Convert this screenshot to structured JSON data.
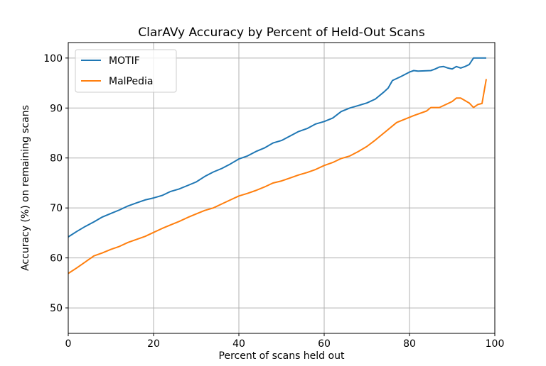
{
  "chart_data": {
    "type": "line",
    "title": "ClarAVy Accuracy by Percent of Held-Out Scans",
    "xlabel": "Percent of scans held out",
    "ylabel": "Accuracy (%) on remaining scans",
    "xlim": [
      0,
      100
    ],
    "ylim": [
      44.9,
      103.1
    ],
    "xticks": [
      0,
      20,
      40,
      60,
      80,
      100
    ],
    "yticks": [
      50,
      60,
      70,
      80,
      90,
      100
    ],
    "grid": true,
    "legend_position": "top-left",
    "series": [
      {
        "name": "MOTIF",
        "color": "#1f77b4",
        "x": [
          0,
          2,
          4,
          6,
          8,
          10,
          12,
          14,
          16,
          18,
          20,
          22,
          24,
          26,
          28,
          30,
          32,
          34,
          36,
          38,
          40,
          42,
          44,
          46,
          48,
          50,
          52,
          54,
          56,
          58,
          60,
          62,
          64,
          66,
          68,
          70,
          72,
          74,
          75,
          76,
          78,
          80,
          81,
          82,
          85,
          86,
          87,
          88,
          89,
          90,
          91,
          92,
          93,
          94,
          95,
          98
        ],
        "y": [
          64.2,
          65.3,
          66.3,
          67.2,
          68.2,
          68.9,
          69.6,
          70.4,
          71.0,
          71.6,
          72.0,
          72.5,
          73.3,
          73.8,
          74.5,
          75.2,
          76.3,
          77.2,
          77.9,
          78.8,
          79.8,
          80.4,
          81.3,
          82.0,
          83.0,
          83.5,
          84.4,
          85.3,
          85.9,
          86.8,
          87.3,
          88.0,
          89.3,
          90.0,
          90.5,
          91.0,
          91.8,
          93.2,
          94.0,
          95.5,
          96.3,
          97.2,
          97.5,
          97.4,
          97.5,
          97.8,
          98.2,
          98.3,
          98.0,
          97.8,
          98.3,
          98.0,
          98.3,
          98.7,
          100,
          100
        ]
      },
      {
        "name": "MalPedia",
        "color": "#ff7f0e",
        "x": [
          0,
          2,
          4,
          6,
          8,
          10,
          12,
          14,
          16,
          18,
          20,
          22,
          24,
          26,
          28,
          30,
          32,
          34,
          36,
          38,
          40,
          42,
          44,
          46,
          48,
          50,
          52,
          54,
          56,
          58,
          60,
          62,
          64,
          66,
          68,
          70,
          72,
          74,
          77,
          81,
          84,
          85,
          87,
          90,
          91,
          92,
          94,
          95,
          96,
          97,
          98
        ],
        "y": [
          56.9,
          58.0,
          59.2,
          60.4,
          61.0,
          61.7,
          62.3,
          63.1,
          63.7,
          64.3,
          65.1,
          65.9,
          66.6,
          67.3,
          68.1,
          68.8,
          69.5,
          70.0,
          70.8,
          71.6,
          72.4,
          72.9,
          73.5,
          74.2,
          75.0,
          75.4,
          76.0,
          76.6,
          77.1,
          77.7,
          78.5,
          79.1,
          79.9,
          80.4,
          81.3,
          82.3,
          83.6,
          85.0,
          87.1,
          88.5,
          89.4,
          90.1,
          90.1,
          91.3,
          92.0,
          92.0,
          91.0,
          90.1,
          90.7,
          90.9,
          95.8
        ]
      }
    ]
  }
}
